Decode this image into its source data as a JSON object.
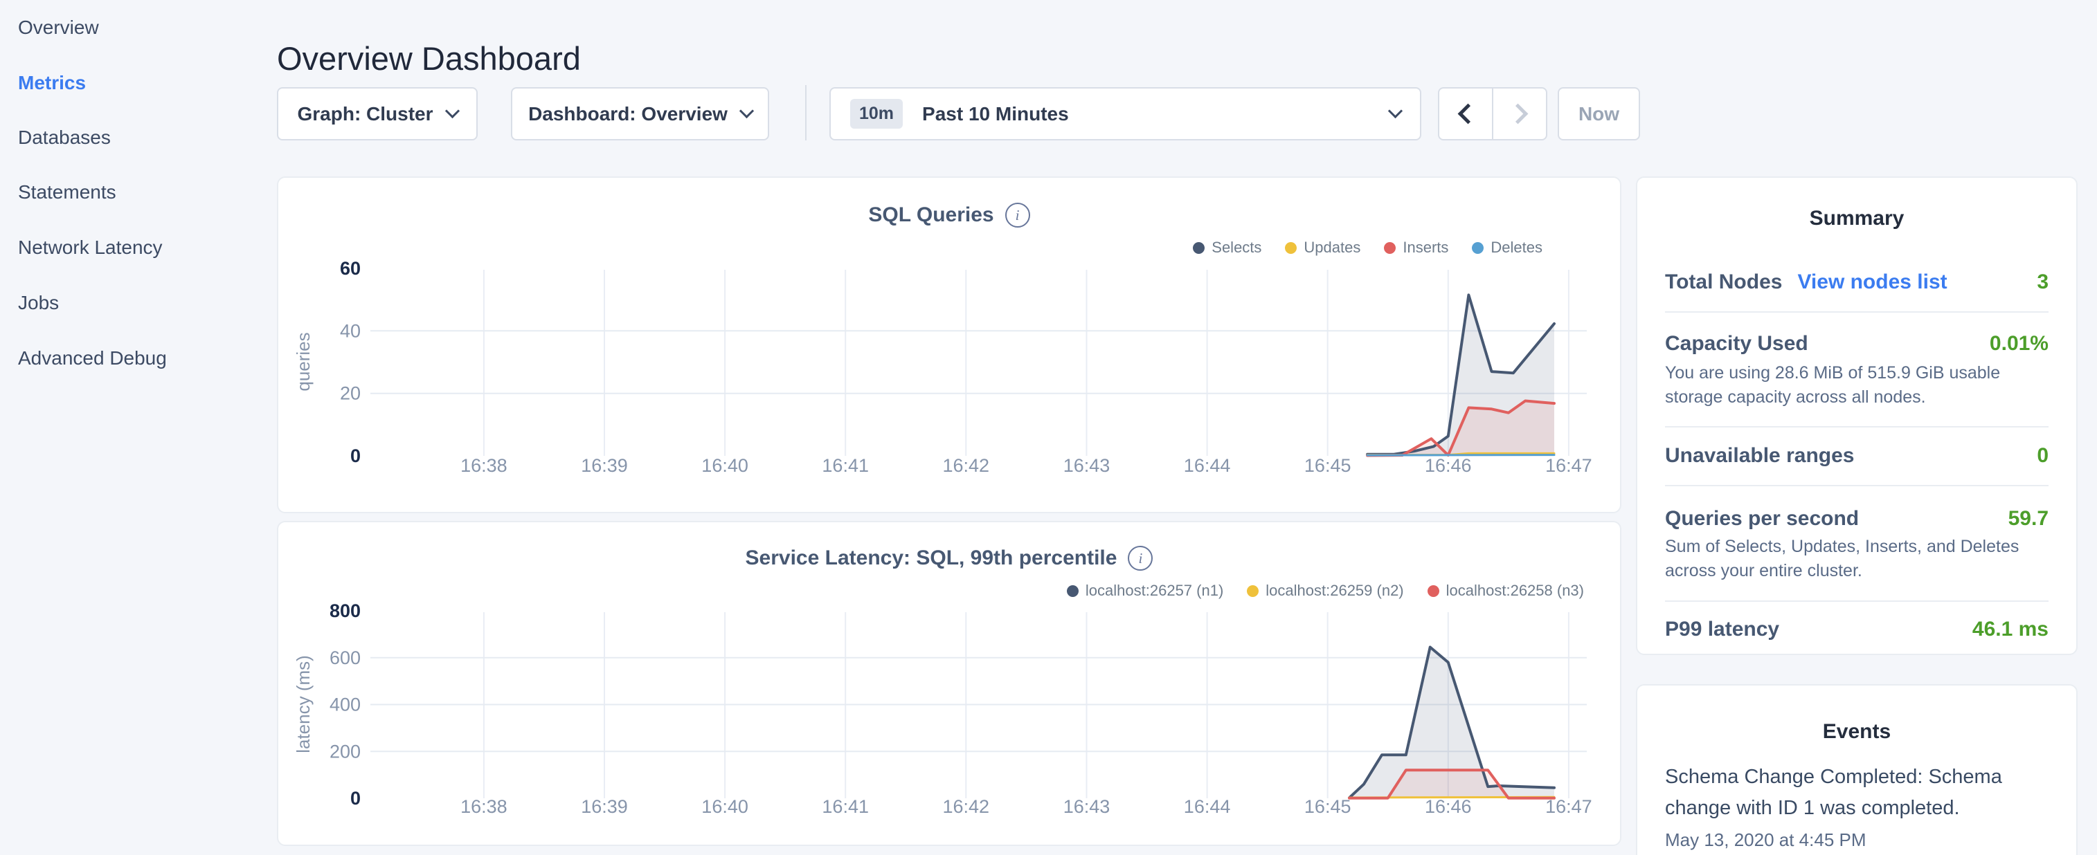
{
  "header": {
    "title": "Overview Dashboard"
  },
  "sidebar": {
    "items": [
      {
        "label": "Overview",
        "active": false
      },
      {
        "label": "Metrics",
        "active": true
      },
      {
        "label": "Databases",
        "active": false
      },
      {
        "label": "Statements",
        "active": false
      },
      {
        "label": "Network Latency",
        "active": false
      },
      {
        "label": "Jobs",
        "active": false
      },
      {
        "label": "Advanced Debug",
        "active": false
      }
    ]
  },
  "toolbar": {
    "graph_dropdown": {
      "label": "Graph: Cluster"
    },
    "dashboard_dropdown": {
      "label": "Dashboard: Overview"
    },
    "time_window": {
      "badge": "10m",
      "label": "Past 10 Minutes"
    },
    "now_button_label": "Now"
  },
  "summary": {
    "title": "Summary",
    "rows": {
      "total_nodes": {
        "label": "Total Nodes",
        "link": "View nodes list",
        "value": "3"
      },
      "capacity": {
        "label": "Capacity Used",
        "value": "0.01%",
        "desc": "You are using 28.6 MiB of 515.9 GiB usable storage capacity across all nodes."
      },
      "unavailable": {
        "label": "Unavailable ranges",
        "value": "0"
      },
      "qps": {
        "label": "Queries per second",
        "value": "59.7",
        "desc": "Sum of Selects, Updates, Inserts, and Deletes across your entire cluster."
      },
      "p99": {
        "label": "P99 latency",
        "value": "46.1 ms"
      }
    }
  },
  "events": {
    "title": "Events",
    "items": [
      {
        "text": "Schema Change Completed: Schema change with ID 1 was completed.",
        "timestamp": "May 13, 2020 at 4:45 PM"
      }
    ]
  },
  "colors": {
    "accent_blue": "#3b7cf0",
    "value_green": "#4c9e2a",
    "series_navy": "#475872",
    "series_yellow": "#efc13b",
    "series_red": "#e0605e",
    "series_blue": "#56a0d2",
    "grid": "#e8edf4",
    "axis_strong": "#1b2b4a",
    "axis_weak": "#8694aa"
  },
  "chart_data": [
    {
      "id": "sql-queries",
      "type": "area",
      "title": "SQL Queries",
      "ylabel": "queries",
      "ylim": [
        0,
        60
      ],
      "yticks": [
        0,
        20,
        40,
        60
      ],
      "grid_y": [
        20,
        40
      ],
      "xlim": [
        37.07,
        47.15
      ],
      "xticks": [
        {
          "m": 38,
          "label": "16:38"
        },
        {
          "m": 39,
          "label": "16:39"
        },
        {
          "m": 40,
          "label": "16:40"
        },
        {
          "m": 41,
          "label": "16:41"
        },
        {
          "m": 42,
          "label": "16:42"
        },
        {
          "m": 43,
          "label": "16:43"
        },
        {
          "m": 44,
          "label": "16:44"
        },
        {
          "m": 45,
          "label": "16:45"
        },
        {
          "m": 46,
          "label": "16:46"
        },
        {
          "m": 47,
          "label": "16:47"
        }
      ],
      "legend_position": "top-right",
      "grid": true,
      "series": [
        {
          "name": "Selects",
          "color": "#475872",
          "fill": "rgba(71,88,114,0.13)",
          "width": 4,
          "points": [
            [
              45.33,
              0.5
            ],
            [
              45.55,
              0.5
            ],
            [
              45.72,
              1.5
            ],
            [
              45.88,
              3
            ],
            [
              46.0,
              6.3
            ],
            [
              46.17,
              51.5
            ],
            [
              46.36,
              27
            ],
            [
              46.54,
              26.5
            ],
            [
              46.88,
              42.3
            ]
          ]
        },
        {
          "name": "Updates",
          "color": "#efc13b",
          "fill": "rgba(239,193,59,0.18)",
          "width": 3,
          "points": [
            [
              45.33,
              0.3
            ],
            [
              46.0,
              0.3
            ],
            [
              46.17,
              0.8
            ],
            [
              46.88,
              0.8
            ]
          ]
        },
        {
          "name": "Inserts",
          "color": "#e0605e",
          "fill": "rgba(224,96,94,0.12)",
          "width": 4,
          "points": [
            [
              45.33,
              0.1
            ],
            [
              45.62,
              0.2
            ],
            [
              45.86,
              5.5
            ],
            [
              46.0,
              0.2
            ],
            [
              46.17,
              15.4
            ],
            [
              46.36,
              15
            ],
            [
              46.5,
              13.8
            ],
            [
              46.64,
              17.6
            ],
            [
              46.88,
              16.8
            ]
          ]
        },
        {
          "name": "Deletes",
          "color": "#56a0d2",
          "fill": "rgba(86,160,210,0.15)",
          "width": 3,
          "points": [
            [
              45.33,
              0.2
            ],
            [
              46.88,
              0.3
            ]
          ]
        }
      ]
    },
    {
      "id": "service-latency",
      "type": "area",
      "title": "Service Latency: SQL, 99th percentile",
      "ylabel": "latency (ms)",
      "ylim": [
        0,
        800
      ],
      "yticks": [
        0,
        200,
        400,
        600,
        800
      ],
      "grid_y": [
        200,
        400,
        600
      ],
      "xlim": [
        37.07,
        47.15
      ],
      "xticks": [
        {
          "m": 38,
          "label": "16:38"
        },
        {
          "m": 39,
          "label": "16:39"
        },
        {
          "m": 40,
          "label": "16:40"
        },
        {
          "m": 41,
          "label": "16:41"
        },
        {
          "m": 42,
          "label": "16:42"
        },
        {
          "m": 43,
          "label": "16:43"
        },
        {
          "m": 44,
          "label": "16:44"
        },
        {
          "m": 45,
          "label": "16:45"
        },
        {
          "m": 46,
          "label": "16:46"
        },
        {
          "m": 47,
          "label": "16:47"
        }
      ],
      "legend_position": "top-right",
      "grid": true,
      "series": [
        {
          "name": "localhost:26257 (n1)",
          "color": "#475872",
          "fill": "rgba(71,88,114,0.13)",
          "width": 4,
          "points": [
            [
              45.18,
              2
            ],
            [
              45.3,
              60
            ],
            [
              45.45,
              185
            ],
            [
              45.65,
              185
            ],
            [
              45.85,
              645
            ],
            [
              46.0,
              580
            ],
            [
              46.33,
              50
            ],
            [
              46.42,
              53
            ],
            [
              46.88,
              45
            ]
          ]
        },
        {
          "name": "localhost:26259 (n2)",
          "color": "#efc13b",
          "fill": "rgba(239,193,59,0.2)",
          "width": 3,
          "points": [
            [
              45.18,
              3
            ],
            [
              46.88,
              5
            ]
          ]
        },
        {
          "name": "localhost:26258 (n3)",
          "color": "#e0605e",
          "fill": "rgba(224,96,94,0.10)",
          "width": 4,
          "points": [
            [
              45.18,
              1
            ],
            [
              45.5,
              1
            ],
            [
              45.65,
              120
            ],
            [
              46.33,
              120
            ],
            [
              46.5,
              1
            ],
            [
              46.88,
              1
            ]
          ]
        }
      ]
    }
  ]
}
